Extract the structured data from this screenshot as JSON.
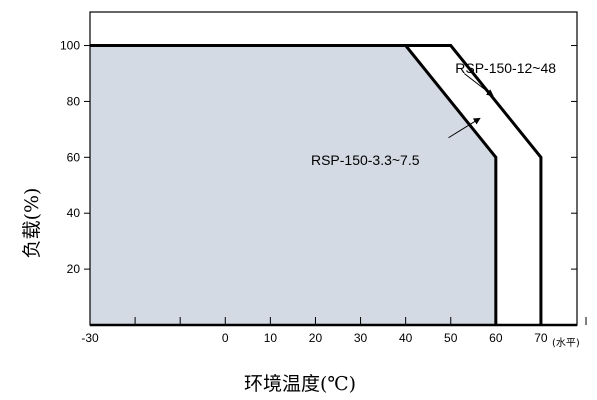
{
  "chart_data": {
    "type": "line",
    "xlabel": "环境温度(℃)",
    "ylabel": "负载(%)",
    "x_unit_note": "(水平)",
    "xlim": [
      -30,
      78
    ],
    "ylim": [
      0,
      112
    ],
    "x_ticks": [
      -30,
      0,
      10,
      20,
      30,
      40,
      50,
      60,
      70
    ],
    "x_minor_ticks": [
      -20,
      -10,
      80
    ],
    "y_ticks": [
      20,
      40,
      60,
      80,
      100
    ],
    "grid": false,
    "series": [
      {
        "name": "RSP-150-3.3~7.5",
        "points": [
          [
            -30,
            100
          ],
          [
            40,
            100
          ],
          [
            60,
            60
          ],
          [
            60,
            0
          ]
        ],
        "filled": true,
        "fill_color": "#d3dae3"
      },
      {
        "name": "RSP-150-12~48",
        "points": [
          [
            -30,
            100
          ],
          [
            50,
            100
          ],
          [
            70,
            60
          ],
          [
            70,
            0
          ]
        ],
        "filled": false
      }
    ],
    "annotations": [
      {
        "text": "RSP-150-12~48",
        "series": 1,
        "label_at": [
          51,
          92
        ],
        "arrow_from": [
          53,
          90
        ],
        "arrow_to": [
          59.4,
          82
        ]
      },
      {
        "text": "RSP-150-3.3~7.5",
        "series": 0,
        "label_at": [
          19,
          59
        ],
        "arrow_from": [
          49.5,
          67
        ],
        "arrow_to": [
          56.5,
          74
        ]
      }
    ]
  }
}
